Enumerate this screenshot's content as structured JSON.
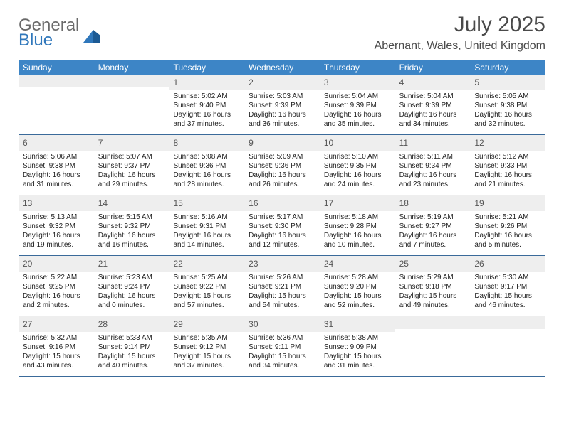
{
  "logo": {
    "line1": "General",
    "line2": "Blue"
  },
  "title": "July 2025",
  "location": "Abernant, Wales, United Kingdom",
  "colors": {
    "header_bg": "#3d85c6",
    "header_text": "#ffffff",
    "daynum_bg": "#eeeeee",
    "week_border": "#3a6a9a",
    "title_color": "#4a4a4a"
  },
  "weekdays": [
    "Sunday",
    "Monday",
    "Tuesday",
    "Wednesday",
    "Thursday",
    "Friday",
    "Saturday"
  ],
  "weeks": [
    [
      {
        "n": "",
        "sr": "",
        "ss": "",
        "d1": "",
        "d2": ""
      },
      {
        "n": "",
        "sr": "",
        "ss": "",
        "d1": "",
        "d2": ""
      },
      {
        "n": "1",
        "sr": "Sunrise: 5:02 AM",
        "ss": "Sunset: 9:40 PM",
        "d1": "Daylight: 16 hours",
        "d2": "and 37 minutes."
      },
      {
        "n": "2",
        "sr": "Sunrise: 5:03 AM",
        "ss": "Sunset: 9:39 PM",
        "d1": "Daylight: 16 hours",
        "d2": "and 36 minutes."
      },
      {
        "n": "3",
        "sr": "Sunrise: 5:04 AM",
        "ss": "Sunset: 9:39 PM",
        "d1": "Daylight: 16 hours",
        "d2": "and 35 minutes."
      },
      {
        "n": "4",
        "sr": "Sunrise: 5:04 AM",
        "ss": "Sunset: 9:39 PM",
        "d1": "Daylight: 16 hours",
        "d2": "and 34 minutes."
      },
      {
        "n": "5",
        "sr": "Sunrise: 5:05 AM",
        "ss": "Sunset: 9:38 PM",
        "d1": "Daylight: 16 hours",
        "d2": "and 32 minutes."
      }
    ],
    [
      {
        "n": "6",
        "sr": "Sunrise: 5:06 AM",
        "ss": "Sunset: 9:38 PM",
        "d1": "Daylight: 16 hours",
        "d2": "and 31 minutes."
      },
      {
        "n": "7",
        "sr": "Sunrise: 5:07 AM",
        "ss": "Sunset: 9:37 PM",
        "d1": "Daylight: 16 hours",
        "d2": "and 29 minutes."
      },
      {
        "n": "8",
        "sr": "Sunrise: 5:08 AM",
        "ss": "Sunset: 9:36 PM",
        "d1": "Daylight: 16 hours",
        "d2": "and 28 minutes."
      },
      {
        "n": "9",
        "sr": "Sunrise: 5:09 AM",
        "ss": "Sunset: 9:36 PM",
        "d1": "Daylight: 16 hours",
        "d2": "and 26 minutes."
      },
      {
        "n": "10",
        "sr": "Sunrise: 5:10 AM",
        "ss": "Sunset: 9:35 PM",
        "d1": "Daylight: 16 hours",
        "d2": "and 24 minutes."
      },
      {
        "n": "11",
        "sr": "Sunrise: 5:11 AM",
        "ss": "Sunset: 9:34 PM",
        "d1": "Daylight: 16 hours",
        "d2": "and 23 minutes."
      },
      {
        "n": "12",
        "sr": "Sunrise: 5:12 AM",
        "ss": "Sunset: 9:33 PM",
        "d1": "Daylight: 16 hours",
        "d2": "and 21 minutes."
      }
    ],
    [
      {
        "n": "13",
        "sr": "Sunrise: 5:13 AM",
        "ss": "Sunset: 9:32 PM",
        "d1": "Daylight: 16 hours",
        "d2": "and 19 minutes."
      },
      {
        "n": "14",
        "sr": "Sunrise: 5:15 AM",
        "ss": "Sunset: 9:32 PM",
        "d1": "Daylight: 16 hours",
        "d2": "and 16 minutes."
      },
      {
        "n": "15",
        "sr": "Sunrise: 5:16 AM",
        "ss": "Sunset: 9:31 PM",
        "d1": "Daylight: 16 hours",
        "d2": "and 14 minutes."
      },
      {
        "n": "16",
        "sr": "Sunrise: 5:17 AM",
        "ss": "Sunset: 9:30 PM",
        "d1": "Daylight: 16 hours",
        "d2": "and 12 minutes."
      },
      {
        "n": "17",
        "sr": "Sunrise: 5:18 AM",
        "ss": "Sunset: 9:28 PM",
        "d1": "Daylight: 16 hours",
        "d2": "and 10 minutes."
      },
      {
        "n": "18",
        "sr": "Sunrise: 5:19 AM",
        "ss": "Sunset: 9:27 PM",
        "d1": "Daylight: 16 hours",
        "d2": "and 7 minutes."
      },
      {
        "n": "19",
        "sr": "Sunrise: 5:21 AM",
        "ss": "Sunset: 9:26 PM",
        "d1": "Daylight: 16 hours",
        "d2": "and 5 minutes."
      }
    ],
    [
      {
        "n": "20",
        "sr": "Sunrise: 5:22 AM",
        "ss": "Sunset: 9:25 PM",
        "d1": "Daylight: 16 hours",
        "d2": "and 2 minutes."
      },
      {
        "n": "21",
        "sr": "Sunrise: 5:23 AM",
        "ss": "Sunset: 9:24 PM",
        "d1": "Daylight: 16 hours",
        "d2": "and 0 minutes."
      },
      {
        "n": "22",
        "sr": "Sunrise: 5:25 AM",
        "ss": "Sunset: 9:22 PM",
        "d1": "Daylight: 15 hours",
        "d2": "and 57 minutes."
      },
      {
        "n": "23",
        "sr": "Sunrise: 5:26 AM",
        "ss": "Sunset: 9:21 PM",
        "d1": "Daylight: 15 hours",
        "d2": "and 54 minutes."
      },
      {
        "n": "24",
        "sr": "Sunrise: 5:28 AM",
        "ss": "Sunset: 9:20 PM",
        "d1": "Daylight: 15 hours",
        "d2": "and 52 minutes."
      },
      {
        "n": "25",
        "sr": "Sunrise: 5:29 AM",
        "ss": "Sunset: 9:18 PM",
        "d1": "Daylight: 15 hours",
        "d2": "and 49 minutes."
      },
      {
        "n": "26",
        "sr": "Sunrise: 5:30 AM",
        "ss": "Sunset: 9:17 PM",
        "d1": "Daylight: 15 hours",
        "d2": "and 46 minutes."
      }
    ],
    [
      {
        "n": "27",
        "sr": "Sunrise: 5:32 AM",
        "ss": "Sunset: 9:16 PM",
        "d1": "Daylight: 15 hours",
        "d2": "and 43 minutes."
      },
      {
        "n": "28",
        "sr": "Sunrise: 5:33 AM",
        "ss": "Sunset: 9:14 PM",
        "d1": "Daylight: 15 hours",
        "d2": "and 40 minutes."
      },
      {
        "n": "29",
        "sr": "Sunrise: 5:35 AM",
        "ss": "Sunset: 9:12 PM",
        "d1": "Daylight: 15 hours",
        "d2": "and 37 minutes."
      },
      {
        "n": "30",
        "sr": "Sunrise: 5:36 AM",
        "ss": "Sunset: 9:11 PM",
        "d1": "Daylight: 15 hours",
        "d2": "and 34 minutes."
      },
      {
        "n": "31",
        "sr": "Sunrise: 5:38 AM",
        "ss": "Sunset: 9:09 PM",
        "d1": "Daylight: 15 hours",
        "d2": "and 31 minutes."
      },
      {
        "n": "",
        "sr": "",
        "ss": "",
        "d1": "",
        "d2": ""
      },
      {
        "n": "",
        "sr": "",
        "ss": "",
        "d1": "",
        "d2": ""
      }
    ]
  ]
}
